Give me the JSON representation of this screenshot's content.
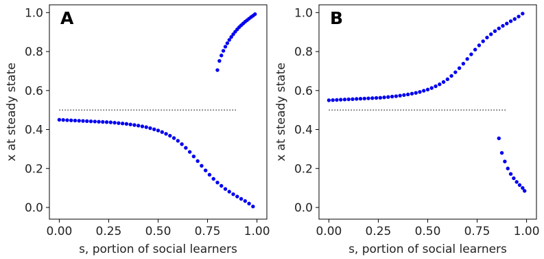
{
  "chart_data": [
    {
      "type": "scatter",
      "panel_label": "A",
      "xlabel": "s, portion of social learners",
      "ylabel": "x at steady state",
      "xlim": [
        -0.05,
        1.05
      ],
      "ylim": [
        -0.06,
        1.04
      ],
      "xticks": [
        "0.00",
        "0.25",
        "0.50",
        "0.75",
        "1.00"
      ],
      "yticks": [
        "0.0",
        "0.2",
        "0.4",
        "0.6",
        "0.8",
        "1.0"
      ],
      "reference_line": {
        "y": 0.5,
        "x": [
          0.0,
          0.9
        ],
        "style": "dotted",
        "color": "#555555"
      },
      "marker_color": "#0000ee",
      "series": [
        {
          "x": [
            0.0,
            0.02,
            0.04,
            0.06,
            0.08,
            0.1,
            0.12,
            0.14,
            0.16,
            0.18,
            0.2,
            0.22,
            0.24,
            0.26,
            0.28,
            0.3,
            0.32,
            0.34,
            0.36,
            0.38,
            0.4,
            0.42,
            0.44,
            0.46,
            0.48,
            0.5,
            0.52,
            0.54,
            0.56,
            0.58,
            0.6,
            0.62,
            0.64,
            0.66,
            0.68,
            0.7,
            0.72,
            0.74,
            0.76,
            0.78,
            0.8,
            0.82,
            0.84,
            0.86,
            0.88,
            0.9,
            0.92,
            0.94,
            0.96,
            0.98
          ],
          "y": [
            0.45,
            0.449,
            0.448,
            0.447,
            0.446,
            0.445,
            0.444,
            0.443,
            0.442,
            0.441,
            0.44,
            0.439,
            0.438,
            0.437,
            0.435,
            0.433,
            0.431,
            0.429,
            0.426,
            0.423,
            0.42,
            0.416,
            0.412,
            0.407,
            0.401,
            0.395,
            0.387,
            0.378,
            0.368,
            0.356,
            0.342,
            0.325,
            0.306,
            0.285,
            0.262,
            0.238,
            0.214,
            0.19,
            0.168,
            0.147,
            0.128,
            0.111,
            0.095,
            0.081,
            0.068,
            0.056,
            0.044,
            0.033,
            0.02,
            0.005
          ]
        },
        {
          "x": [
            0.8,
            0.81,
            0.82,
            0.83,
            0.84,
            0.85,
            0.86,
            0.87,
            0.88,
            0.89,
            0.9,
            0.91,
            0.92,
            0.93,
            0.94,
            0.95,
            0.96,
            0.97,
            0.98,
            0.99
          ],
          "y": [
            0.705,
            0.752,
            0.78,
            0.804,
            0.825,
            0.843,
            0.86,
            0.875,
            0.889,
            0.902,
            0.914,
            0.925,
            0.935,
            0.944,
            0.953,
            0.961,
            0.969,
            0.977,
            0.984,
            0.992
          ]
        }
      ]
    },
    {
      "type": "scatter",
      "panel_label": "B",
      "xlabel": "s, portion of social learners",
      "ylabel": "x at steady state",
      "xlim": [
        -0.05,
        1.05
      ],
      "ylim": [
        -0.06,
        1.04
      ],
      "xticks": [
        "0.00",
        "0.25",
        "0.50",
        "0.75",
        "1.00"
      ],
      "yticks": [
        "0.0",
        "0.2",
        "0.4",
        "0.6",
        "0.8",
        "1.0"
      ],
      "reference_line": {
        "y": 0.5,
        "x": [
          0.0,
          0.9
        ],
        "style": "dotted",
        "color": "#555555"
      },
      "marker_color": "#0000ee",
      "series": [
        {
          "x": [
            0.0,
            0.02,
            0.04,
            0.06,
            0.08,
            0.1,
            0.12,
            0.14,
            0.16,
            0.18,
            0.2,
            0.22,
            0.24,
            0.26,
            0.28,
            0.3,
            0.32,
            0.34,
            0.36,
            0.38,
            0.4,
            0.42,
            0.44,
            0.46,
            0.48,
            0.5,
            0.52,
            0.54,
            0.56,
            0.58,
            0.6,
            0.62,
            0.64,
            0.66,
            0.68,
            0.7,
            0.72,
            0.74,
            0.76,
            0.78,
            0.8,
            0.82,
            0.84,
            0.86,
            0.88,
            0.9,
            0.92,
            0.94,
            0.96,
            0.98
          ],
          "y": [
            0.55,
            0.551,
            0.552,
            0.553,
            0.554,
            0.555,
            0.556,
            0.557,
            0.558,
            0.559,
            0.56,
            0.561,
            0.562,
            0.563,
            0.565,
            0.567,
            0.569,
            0.571,
            0.574,
            0.577,
            0.58,
            0.584,
            0.588,
            0.593,
            0.599,
            0.605,
            0.613,
            0.622,
            0.632,
            0.644,
            0.658,
            0.675,
            0.694,
            0.715,
            0.738,
            0.762,
            0.786,
            0.81,
            0.832,
            0.853,
            0.872,
            0.889,
            0.905,
            0.919,
            0.932,
            0.944,
            0.956,
            0.967,
            0.98,
            0.995
          ]
        },
        {
          "x": [
            0.86,
            0.875,
            0.89,
            0.905,
            0.92,
            0.935,
            0.95,
            0.965,
            0.98,
            0.99
          ],
          "y": [
            0.355,
            0.28,
            0.236,
            0.2,
            0.172,
            0.15,
            0.131,
            0.115,
            0.1,
            0.085
          ]
        }
      ]
    }
  ]
}
